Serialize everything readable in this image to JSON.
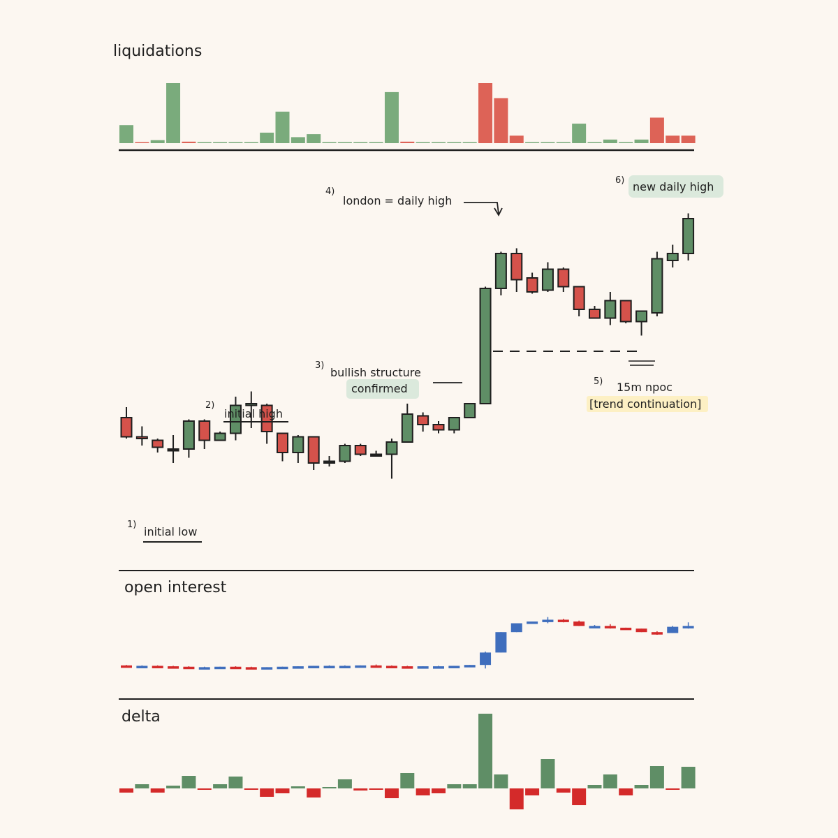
{
  "colors": {
    "background": "#fcf7f1",
    "bull": "#5f8e66",
    "bear": "#d5524b",
    "bull_light": "#7aab7c",
    "bear_light": "#dd6357",
    "oi_up": "#3f6ebd",
    "oi_down": "#d42a2a",
    "delta_pos": "#5f8e66",
    "delta_neg": "#d42a2a",
    "label_green": "#dbe9dc",
    "label_yellow": "#fdf0c4",
    "ink": "#1f1f1f"
  },
  "panels": {
    "liquidations": "liquidations",
    "open_interest": "open interest",
    "delta": "delta"
  },
  "annotations": [
    {
      "id": "initial-low",
      "number": "1)",
      "text": "initial low",
      "style": "underline"
    },
    {
      "id": "initial-high",
      "number": "2)",
      "text": "initial high",
      "style": "underline"
    },
    {
      "id": "bullish-structure",
      "number": "3)",
      "text": "bullish structure",
      "text2": "confirmed",
      "style": "green-box"
    },
    {
      "id": "london-high",
      "number": "4)",
      "text": "london = daily high",
      "style": "arrow"
    },
    {
      "id": "npoc",
      "number": "5)",
      "text": "15m npoc",
      "text2": "[trend continuation]",
      "style": "yellow-box"
    },
    {
      "id": "new-daily-high",
      "number": "6)",
      "text": "new daily high",
      "style": "green-box"
    }
  ],
  "chart_data": [
    {
      "type": "bar",
      "title": "liquidations",
      "series": [],
      "values": [
        6,
        0.3,
        1,
        20,
        0.5,
        0.3,
        0.3,
        0.3,
        0.3,
        3.5,
        10.5,
        2,
        3,
        0.3,
        0.3,
        0.3,
        0.3,
        17,
        0.5,
        0.3,
        0.3,
        0.3,
        0.3,
        20,
        15,
        2.5,
        0.3,
        0.3,
        0.3,
        6.5,
        0.3,
        1.2,
        0.3,
        1.2,
        8.5,
        2.5,
        2.5
      ],
      "colors": [
        "bull",
        "bear",
        "bull",
        "bull",
        "bear",
        "bull",
        "bull",
        "bull",
        "bull",
        "bull",
        "bull",
        "bull",
        "bull",
        "bull",
        "bull",
        "bull",
        "bull",
        "bull",
        "bear",
        "bull",
        "bull",
        "bull",
        "bull",
        "bear",
        "bear",
        "bear",
        "bull",
        "bull",
        "bull",
        "bull",
        "bull",
        "bull",
        "bull",
        "bull",
        "bear",
        "bear",
        "bear"
      ]
    },
    {
      "type": "candlestick",
      "title": "",
      "ylim": [
        0,
        100
      ],
      "candles": [
        {
          "o": 36,
          "h": 39,
          "l": 30,
          "c": 30.5
        },
        {
          "o": 30.5,
          "h": 33.5,
          "l": 28,
          "c": 30
        },
        {
          "o": 29.5,
          "h": 30,
          "l": 26,
          "c": 27.5
        },
        {
          "o": 27,
          "h": 31,
          "l": 23,
          "c": 27
        },
        {
          "o": 27,
          "h": 35.5,
          "l": 24.5,
          "c": 35
        },
        {
          "o": 35,
          "h": 35.5,
          "l": 27,
          "c": 29.5
        },
        {
          "o": 29.5,
          "h": 32,
          "l": 29.5,
          "c": 31.5
        },
        {
          "o": 31.5,
          "h": 42,
          "l": 29.5,
          "c": 39.5
        },
        {
          "o": 39.5,
          "h": 43.5,
          "l": 33,
          "c": 40
        },
        {
          "o": 39.5,
          "h": 40,
          "l": 28.5,
          "c": 32
        },
        {
          "o": 31.5,
          "h": 31.5,
          "l": 23.5,
          "c": 26
        },
        {
          "o": 26,
          "h": 31,
          "l": 23,
          "c": 30.5
        },
        {
          "o": 30.5,
          "h": 30.5,
          "l": 21,
          "c": 23
        },
        {
          "o": 23.5,
          "h": 25,
          "l": 22,
          "c": 23.5
        },
        {
          "o": 23.5,
          "h": 28.5,
          "l": 23,
          "c": 28
        },
        {
          "o": 28,
          "h": 28.5,
          "l": 25,
          "c": 25.5
        },
        {
          "o": 25.5,
          "h": 26.5,
          "l": 25,
          "c": 25.5
        },
        {
          "o": 25.5,
          "h": 30,
          "l": 18.5,
          "c": 29
        },
        {
          "o": 29,
          "h": 40,
          "l": 29,
          "c": 37
        },
        {
          "o": 36.5,
          "h": 37.5,
          "l": 32,
          "c": 34
        },
        {
          "o": 34,
          "h": 35,
          "l": 31.5,
          "c": 32.5
        },
        {
          "o": 32.5,
          "h": 36,
          "l": 31.5,
          "c": 36
        },
        {
          "o": 36,
          "h": 40,
          "l": 36,
          "c": 40
        },
        {
          "o": 40,
          "h": 73.5,
          "l": 40,
          "c": 73
        },
        {
          "o": 73,
          "h": 83.5,
          "l": 71,
          "c": 83
        },
        {
          "o": 83,
          "h": 84.5,
          "l": 72,
          "c": 75.5
        },
        {
          "o": 76,
          "h": 77.5,
          "l": 71.5,
          "c": 72
        },
        {
          "o": 72.5,
          "h": 80.5,
          "l": 72,
          "c": 78.5
        },
        {
          "o": 78.5,
          "h": 79,
          "l": 72,
          "c": 73.5
        },
        {
          "o": 73.5,
          "h": 73.5,
          "l": 65,
          "c": 67
        },
        {
          "o": 67,
          "h": 68,
          "l": 64.5,
          "c": 64.5
        },
        {
          "o": 64.5,
          "h": 72,
          "l": 62.5,
          "c": 69.5
        },
        {
          "o": 69.5,
          "h": 69.5,
          "l": 63,
          "c": 63.5
        },
        {
          "o": 63.5,
          "h": 66.5,
          "l": 59.5,
          "c": 66.5
        },
        {
          "o": 66,
          "h": 83.5,
          "l": 65,
          "c": 81.5
        },
        {
          "o": 81,
          "h": 85.5,
          "l": 79,
          "c": 83
        },
        {
          "o": 83,
          "h": 94.5,
          "l": 81,
          "c": 93
        }
      ],
      "npoc_level": 61.5
    },
    {
      "type": "candlestick",
      "title": "open interest",
      "ylim": [
        0,
        100
      ],
      "candles": [
        {
          "o": 2.5,
          "h": 3,
          "l": 2,
          "c": 2
        },
        {
          "o": 2,
          "h": 2.5,
          "l": 1.5,
          "c": 2
        },
        {
          "o": 2,
          "h": 2.5,
          "l": 1.5,
          "c": 1.5
        },
        {
          "o": 1.5,
          "h": 2,
          "l": 1,
          "c": 1
        },
        {
          "o": 1,
          "h": 1.5,
          "l": 0.5,
          "c": 0.5
        },
        {
          "o": 0.5,
          "h": 1,
          "l": 0,
          "c": 0.5
        },
        {
          "o": 0.5,
          "h": 1,
          "l": 0,
          "c": 1
        },
        {
          "o": 1,
          "h": 1.5,
          "l": 0.5,
          "c": 0.5
        },
        {
          "o": 0.5,
          "h": 1,
          "l": 0,
          "c": 0
        },
        {
          "o": 0,
          "h": 0.5,
          "l": -0.5,
          "c": 0.5
        },
        {
          "o": 0.5,
          "h": 1,
          "l": 0,
          "c": 1
        },
        {
          "o": 1,
          "h": 1.5,
          "l": 0.5,
          "c": 1.5
        },
        {
          "o": 1.5,
          "h": 2,
          "l": 1,
          "c": 2
        },
        {
          "o": 2,
          "h": 2.5,
          "l": 1.5,
          "c": 2
        },
        {
          "o": 2,
          "h": 2.5,
          "l": 1.5,
          "c": 2
        },
        {
          "o": 2,
          "h": 2.5,
          "l": 1.5,
          "c": 2.5
        },
        {
          "o": 2.5,
          "h": 3.5,
          "l": 2,
          "c": 2
        },
        {
          "o": 2,
          "h": 2.5,
          "l": 1.5,
          "c": 1.5
        },
        {
          "o": 1.5,
          "h": 2,
          "l": 1,
          "c": 1
        },
        {
          "o": 1,
          "h": 1.5,
          "l": 0.5,
          "c": 1.5
        },
        {
          "o": 1.5,
          "h": 2,
          "l": 1,
          "c": 1.5
        },
        {
          "o": 1.5,
          "h": 2,
          "l": 1,
          "c": 2
        },
        {
          "o": 2,
          "h": 3,
          "l": 1.5,
          "c": 3
        },
        {
          "o": 3,
          "h": 18,
          "l": -1,
          "c": 17
        },
        {
          "o": 17,
          "h": 40,
          "l": 17,
          "c": 40
        },
        {
          "o": 40,
          "h": 50,
          "l": 40,
          "c": 50
        },
        {
          "o": 50,
          "h": 52,
          "l": 50,
          "c": 52
        },
        {
          "o": 52,
          "h": 57,
          "l": 50,
          "c": 54
        },
        {
          "o": 54,
          "h": 55,
          "l": 51,
          "c": 52
        },
        {
          "o": 52,
          "h": 53,
          "l": 47,
          "c": 47
        },
        {
          "o": 47,
          "h": 48,
          "l": 46,
          "c": 47
        },
        {
          "o": 47,
          "h": 49,
          "l": 44,
          "c": 45
        },
        {
          "o": 45,
          "h": 45,
          "l": 44,
          "c": 44
        },
        {
          "o": 44,
          "h": 44,
          "l": 40,
          "c": 40
        },
        {
          "o": 40,
          "h": 41,
          "l": 37,
          "c": 39
        },
        {
          "o": 39,
          "h": 47,
          "l": 39,
          "c": 46
        },
        {
          "o": 46,
          "h": 51,
          "l": 44,
          "c": 47
        }
      ]
    },
    {
      "type": "bar",
      "title": "delta",
      "ylim": [
        -30,
        110
      ],
      "values": [
        -6,
        6,
        -6,
        4,
        18,
        -2,
        6,
        17,
        -2,
        -12,
        -7,
        3,
        -13,
        2,
        13,
        -3,
        -2,
        -14,
        22,
        -10,
        -7,
        6,
        6,
        107,
        20,
        -30,
        -10,
        42,
        -6,
        -24,
        5,
        20,
        -10,
        5,
        32,
        -2,
        31
      ]
    }
  ]
}
